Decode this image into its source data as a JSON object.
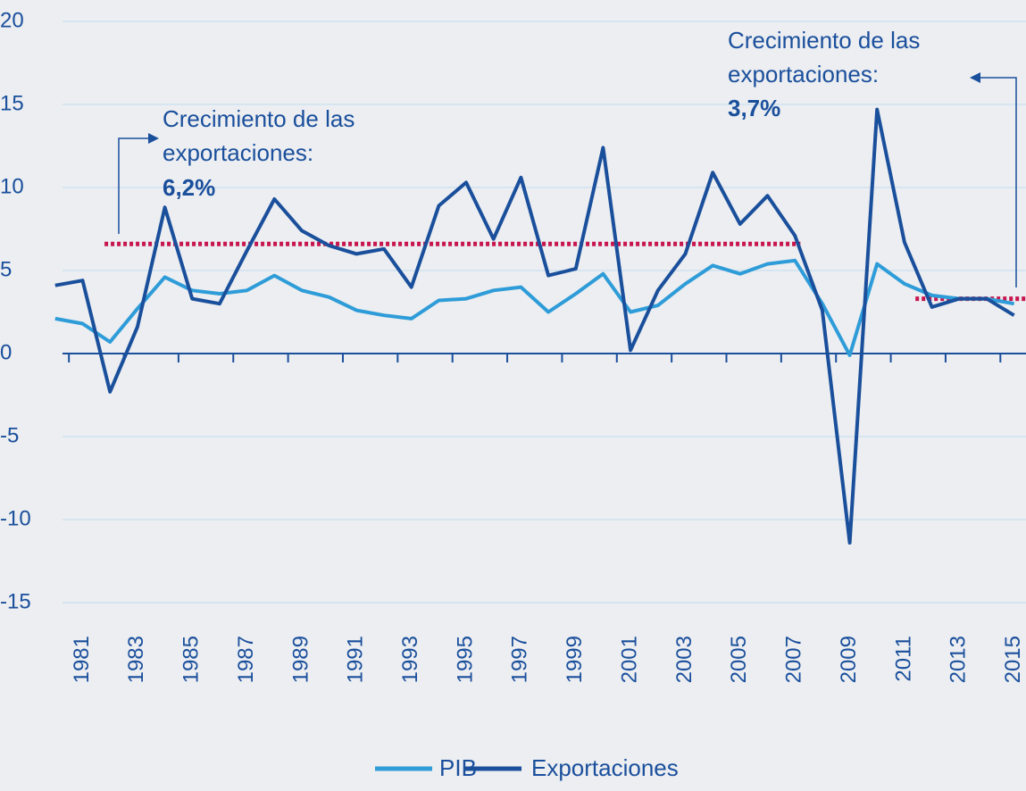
{
  "chart_data": {
    "type": "line",
    "categories": [
      null,
      "1981",
      null,
      "1983",
      null,
      "1985",
      null,
      "1987",
      null,
      "1989",
      null,
      "1991",
      null,
      "1993",
      null,
      "1995",
      null,
      "1997",
      null,
      "1999",
      null,
      "2001",
      null,
      "2003",
      null,
      "2005",
      null,
      "2007",
      null,
      "2009",
      null,
      "2011",
      null,
      "2013",
      null,
      "2015"
    ],
    "series": [
      {
        "name": "PIB",
        "color": "#2e9cd8",
        "values": [
          2.1,
          1.8,
          0.7,
          2.7,
          4.6,
          3.8,
          3.6,
          3.8,
          4.7,
          3.8,
          3.4,
          2.6,
          2.3,
          2.1,
          3.2,
          3.3,
          3.8,
          4.0,
          2.5,
          3.6,
          4.8,
          2.5,
          2.9,
          4.2,
          5.3,
          4.8,
          5.4,
          5.6,
          3.0,
          -0.1,
          5.4,
          4.2,
          3.5,
          3.3,
          3.3,
          3.0
        ]
      },
      {
        "name": "Exportaciones",
        "color": "#1a4f9c",
        "values": [
          4.1,
          4.4,
          -2.3,
          1.6,
          8.8,
          3.3,
          3.0,
          6.2,
          9.3,
          7.4,
          6.5,
          6.0,
          6.3,
          4.0,
          8.9,
          10.3,
          6.9,
          10.6,
          4.7,
          5.1,
          12.4,
          0.2,
          3.8,
          6.0,
          10.9,
          7.8,
          9.5,
          7.1,
          2.6,
          -11.4,
          14.7,
          6.7,
          2.8,
          3.3,
          3.3,
          2.3
        ]
      }
    ],
    "ylim": [
      -17,
      21
    ],
    "yticks": [
      -15,
      -10,
      -5,
      0,
      5,
      10,
      15,
      20
    ],
    "grid": true,
    "reference_lines": [
      {
        "value": 6.6,
        "color": "#c8164f"
      },
      {
        "value": 3.3,
        "color": "#c8164f"
      }
    ],
    "annotations": [
      {
        "lines": [
          "Crecimiento de las",
          "exportaciones:"
        ],
        "highlight": "6,2%"
      },
      {
        "lines": [
          "Crecimiento de las",
          "exportaciones:"
        ],
        "highlight": "3,7%"
      }
    ]
  }
}
